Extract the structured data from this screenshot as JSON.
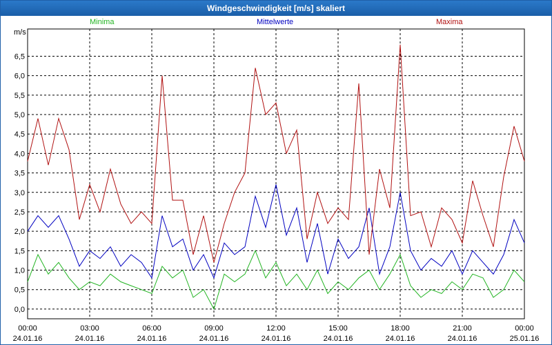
{
  "window": {
    "title": "Windgeschwindigkeit [m/s] skaliert"
  },
  "chart_data": {
    "type": "line",
    "title": "Windgeschwindigkeit [m/s] skaliert",
    "ylabel": "m/s",
    "ylim": [
      -0.25,
      7.2
    ],
    "yticks": [
      "0,0",
      "0,5",
      "1,0",
      "1,5",
      "2,0",
      "2,5",
      "3,0",
      "3,5",
      "4,0",
      "4,5",
      "5,0",
      "5,5",
      "6,0",
      "6,5"
    ],
    "ytick_values": [
      0,
      0.5,
      1,
      1.5,
      2,
      2.5,
      3,
      3.5,
      4,
      4.5,
      5,
      5.5,
      6,
      6.5
    ],
    "xticks": [
      {
        "time": "00:00",
        "date": "24.01.16"
      },
      {
        "time": "03:00",
        "date": "24.01.16"
      },
      {
        "time": "06:00",
        "date": "24.01.16"
      },
      {
        "time": "09:00",
        "date": "24.01.16"
      },
      {
        "time": "12:00",
        "date": "24.01.16"
      },
      {
        "time": "15:00",
        "date": "24.01.16"
      },
      {
        "time": "18:00",
        "date": "24.01.16"
      },
      {
        "time": "21:00",
        "date": "24.01.16"
      },
      {
        "time": "00:00",
        "date": "25.01.16"
      }
    ],
    "xlim_hours": [
      0,
      24
    ],
    "grid": true,
    "legend_placement": "top",
    "series": [
      {
        "name": "Minima",
        "color": "#22b422",
        "hours": [
          0,
          0.5,
          1,
          1.5,
          2,
          2.5,
          3,
          3.5,
          4,
          4.5,
          5,
          5.5,
          6,
          6.5,
          7,
          7.5,
          8,
          8.5,
          9,
          9.5,
          10,
          10.5,
          11,
          11.5,
          12,
          12.5,
          13,
          13.5,
          14,
          14.5,
          15,
          15.5,
          16,
          16.5,
          17,
          17.5,
          18,
          18.5,
          19,
          19.5,
          20,
          20.5,
          21,
          21.5,
          22,
          22.5,
          23,
          23.5,
          24
        ],
        "values": [
          0.7,
          1.4,
          0.9,
          1.2,
          0.8,
          0.5,
          0.7,
          0.6,
          0.9,
          0.7,
          0.6,
          0.5,
          0.4,
          1.1,
          0.8,
          1.0,
          0.3,
          0.5,
          0.0,
          0.9,
          0.7,
          0.9,
          1.5,
          0.8,
          1.2,
          0.6,
          0.9,
          0.5,
          1.0,
          0.4,
          0.7,
          0.5,
          0.8,
          1.0,
          0.5,
          0.9,
          1.4,
          0.6,
          0.3,
          0.5,
          0.4,
          0.7,
          0.5,
          0.9,
          0.8,
          0.3,
          0.5,
          1.0,
          0.7
        ]
      },
      {
        "name": "Mittelwerte",
        "color": "#0000c0",
        "hours": [
          0,
          0.5,
          1,
          1.5,
          2,
          2.5,
          3,
          3.5,
          4,
          4.5,
          5,
          5.5,
          6,
          6.5,
          7,
          7.5,
          8,
          8.5,
          9,
          9.5,
          10,
          10.5,
          11,
          11.5,
          12,
          12.5,
          13,
          13.5,
          14,
          14.5,
          15,
          15.5,
          16,
          16.5,
          17,
          17.5,
          18,
          18.5,
          19,
          19.5,
          20,
          20.5,
          21,
          21.5,
          22,
          22.5,
          23,
          23.5,
          24
        ],
        "values": [
          2.0,
          2.4,
          2.1,
          2.4,
          1.8,
          1.1,
          1.5,
          1.3,
          1.6,
          1.1,
          1.4,
          1.2,
          0.8,
          2.4,
          1.6,
          1.8,
          1.0,
          1.4,
          0.8,
          1.7,
          1.4,
          1.6,
          2.9,
          2.1,
          3.2,
          1.9,
          2.6,
          1.2,
          2.2,
          0.9,
          1.8,
          1.3,
          1.6,
          2.6,
          0.9,
          1.6,
          3.0,
          1.5,
          1.0,
          1.3,
          1.1,
          1.5,
          0.9,
          1.5,
          1.2,
          0.9,
          1.4,
          2.3,
          1.7
        ]
      },
      {
        "name": "Maxima",
        "color": "#b01010",
        "hours": [
          0,
          0.5,
          1,
          1.5,
          2,
          2.5,
          3,
          3.5,
          4,
          4.5,
          5,
          5.5,
          6,
          6.5,
          7,
          7.5,
          8,
          8.5,
          9,
          9.5,
          10,
          10.5,
          11,
          11.5,
          12,
          12.5,
          13,
          13.5,
          14,
          14.5,
          15,
          15.5,
          16,
          16.5,
          17,
          17.5,
          18,
          18.5,
          19,
          19.5,
          20,
          20.5,
          21,
          21.5,
          22,
          22.5,
          23,
          23.5,
          24
        ],
        "values": [
          3.8,
          4.9,
          3.7,
          4.9,
          4.1,
          2.3,
          3.2,
          2.5,
          3.6,
          2.7,
          2.2,
          2.5,
          2.2,
          6.0,
          2.8,
          2.8,
          1.4,
          2.4,
          1.2,
          2.2,
          3.0,
          3.5,
          6.2,
          5.0,
          5.3,
          4.0,
          4.6,
          1.8,
          3.0,
          2.2,
          2.6,
          2.3,
          5.8,
          1.4,
          3.6,
          2.6,
          6.8,
          2.4,
          2.5,
          1.6,
          2.6,
          2.3,
          1.7,
          3.3,
          2.4,
          1.6,
          3.4,
          4.7,
          3.8
        ]
      }
    ]
  }
}
